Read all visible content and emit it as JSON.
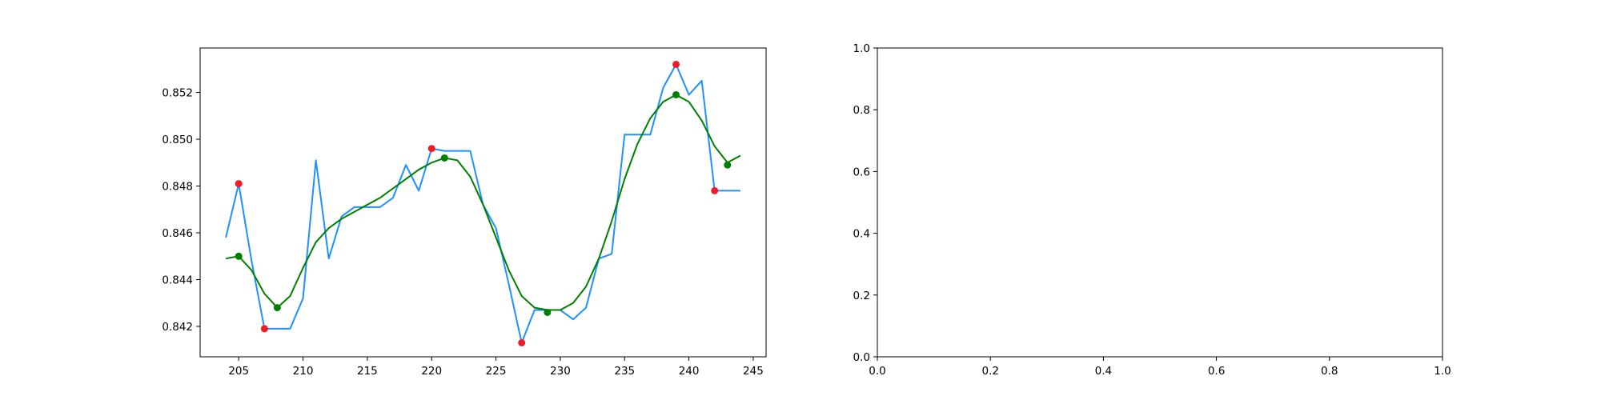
{
  "chart_data": [
    {
      "type": "line",
      "title": "",
      "xlabel": "",
      "ylabel": "",
      "xlim": [
        202,
        246
      ],
      "ylim": [
        0.8407,
        0.8539
      ],
      "grid": false,
      "x_ticks": [
        205,
        210,
        215,
        220,
        225,
        230,
        235,
        240,
        245
      ],
      "x_tick_labels": [
        "205",
        "210",
        "215",
        "220",
        "225",
        "230",
        "235",
        "240",
        "245"
      ],
      "y_ticks": [
        0.842,
        0.844,
        0.846,
        0.848,
        0.85,
        0.852
      ],
      "y_tick_labels": [
        "0.842",
        "0.844",
        "0.846",
        "0.848",
        "0.850",
        "0.852"
      ],
      "series": [
        {
          "kind": "line",
          "color": "#1e90ff",
          "x": [
            204,
            205,
            206,
            207,
            208,
            209,
            210,
            211,
            212,
            213,
            214,
            215,
            216,
            217,
            218,
            219,
            220,
            221,
            222,
            223,
            224,
            225,
            226,
            227,
            228,
            229,
            230,
            231,
            232,
            233,
            234,
            235,
            236,
            237,
            238,
            239,
            240,
            241,
            242,
            243,
            244
          ],
          "y": [
            0.8458,
            0.8481,
            0.8448,
            0.8419,
            0.8419,
            0.8419,
            0.8432,
            0.8491,
            0.8449,
            0.8467,
            0.8471,
            0.8471,
            0.8471,
            0.8475,
            0.8489,
            0.8478,
            0.8496,
            0.8495,
            0.8495,
            0.8495,
            0.8472,
            0.8462,
            0.8438,
            0.8413,
            0.8427,
            0.8427,
            0.8427,
            0.8423,
            0.8428,
            0.8449,
            0.8451,
            0.8502,
            0.8502,
            0.8502,
            0.8522,
            0.8532,
            0.8519,
            0.8525,
            0.8478,
            0.8478,
            0.8478
          ]
        },
        {
          "kind": "line",
          "color": "#008000",
          "x": [
            204,
            205,
            206,
            207,
            208,
            209,
            210,
            211,
            212,
            213,
            214,
            215,
            216,
            217,
            218,
            219,
            220,
            221,
            222,
            223,
            224,
            225,
            226,
            227,
            228,
            229,
            230,
            231,
            232,
            233,
            234,
            235,
            236,
            237,
            238,
            239,
            240,
            241,
            242,
            243,
            244
          ],
          "y": [
            0.8449,
            0.845,
            0.8444,
            0.8434,
            0.8428,
            0.8433,
            0.8445,
            0.8456,
            0.8462,
            0.8466,
            0.8469,
            0.8472,
            0.8475,
            0.8479,
            0.8483,
            0.8487,
            0.849,
            0.8492,
            0.8491,
            0.8484,
            0.8472,
            0.8458,
            0.8444,
            0.8433,
            0.8428,
            0.8427,
            0.8427,
            0.843,
            0.8437,
            0.8449,
            0.8465,
            0.8483,
            0.8498,
            0.8509,
            0.8516,
            0.8519,
            0.8516,
            0.8508,
            0.8497,
            0.849,
            0.8493
          ]
        },
        {
          "kind": "scatter",
          "color": "#ee1c25",
          "x": [
            205,
            207,
            220,
            227,
            239,
            242
          ],
          "y": [
            0.8481,
            0.8419,
            0.8496,
            0.8413,
            0.8532,
            0.8478
          ]
        },
        {
          "kind": "scatter",
          "color": "#008000",
          "x": [
            205,
            208,
            221,
            229,
            239,
            243
          ],
          "y": [
            0.845,
            0.8428,
            0.8492,
            0.8426,
            0.8519,
            0.8489
          ]
        }
      ]
    },
    {
      "type": "line",
      "title": "",
      "xlabel": "",
      "ylabel": "",
      "xlim": [
        0.0,
        1.0
      ],
      "ylim": [
        0.0,
        1.0
      ],
      "grid": false,
      "x_ticks": [
        0.0,
        0.2,
        0.4,
        0.6,
        0.8,
        1.0
      ],
      "x_tick_labels": [
        "0.0",
        "0.2",
        "0.4",
        "0.6",
        "0.8",
        "1.0"
      ],
      "y_ticks": [
        0.0,
        0.2,
        0.4,
        0.6,
        0.8,
        1.0
      ],
      "y_tick_labels": [
        "0.0",
        "0.2",
        "0.4",
        "0.6",
        "0.8",
        "1.0"
      ],
      "series": []
    }
  ]
}
